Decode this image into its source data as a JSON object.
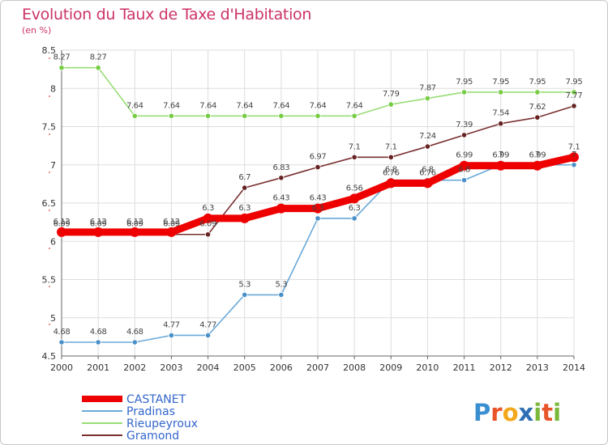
{
  "title": "Evolution du Taux de Taxe d'Habitation",
  "subtitle": "(en %)",
  "logo": {
    "letters": [
      "P",
      "r",
      "o",
      "x",
      "i",
      "t",
      "i"
    ]
  },
  "colors": {
    "title": "#cc3366",
    "legend_text": "#3366cc",
    "grid": "#dddddd",
    "axis": "#666666"
  },
  "chart_data": {
    "type": "line",
    "x": [
      2000,
      2001,
      2002,
      2003,
      2004,
      2005,
      2006,
      2007,
      2008,
      2009,
      2010,
      2011,
      2012,
      2013,
      2014
    ],
    "ylim": [
      4.5,
      8.5
    ],
    "yticks": [
      4.5,
      5,
      5.5,
      6,
      6.5,
      7,
      7.5,
      8,
      8.5
    ],
    "ytick_labels": [
      "4.5",
      "5",
      "5.5",
      "6",
      "6.5",
      "7",
      "7.5",
      "8",
      "8.5"
    ],
    "grid": true,
    "legend_position": "bottom-left",
    "series": [
      {
        "name": "CASTANET",
        "color": "#ee0000",
        "marker": "#ee0000",
        "values": [
          6.12,
          6.12,
          6.12,
          6.12,
          6.3,
          6.3,
          6.43,
          6.43,
          6.56,
          6.76,
          6.76,
          6.99,
          6.99,
          6.99,
          7.1
        ],
        "labels": [
          "6.12",
          "6.12",
          "6.12",
          "6.12",
          "6.3",
          "6.3",
          "6.43",
          "6.43",
          "6.56",
          "6.76",
          "6.76",
          "6.99",
          "6.99",
          "6.99",
          "7.1"
        ]
      },
      {
        "name": "Pradinas",
        "color": "#6aa9d8",
        "marker": "#4a90c8",
        "values": [
          4.68,
          4.68,
          4.68,
          4.77,
          4.77,
          5.3,
          5.3,
          6.3,
          6.3,
          6.8,
          6.8,
          6.8,
          7.0,
          7.0,
          7.0
        ],
        "labels": [
          "4.68",
          "4.68",
          "4.68",
          "4.77",
          "4.77",
          "5.3",
          "5.3",
          "6.3",
          "6.3",
          "6.8",
          "6.8",
          "6.8",
          "7",
          "7",
          "7"
        ]
      },
      {
        "name": "Rieupeyroux",
        "color": "#99dd77",
        "marker": "#77cc44",
        "values": [
          8.27,
          8.27,
          7.64,
          7.64,
          7.64,
          7.64,
          7.64,
          7.64,
          7.64,
          7.79,
          7.87,
          7.95,
          7.95,
          7.95,
          7.95
        ],
        "labels": [
          "8.27",
          "8.27",
          "7.64",
          "7.64",
          "7.64",
          "7.64",
          "7.64",
          "7.64",
          "7.64",
          "7.79",
          "7.87",
          "7.95",
          "7.95",
          "7.95",
          "7.95"
        ]
      },
      {
        "name": "Gramond",
        "color": "#7a3030",
        "marker": "#662222",
        "values": [
          6.09,
          6.09,
          6.09,
          6.09,
          6.09,
          6.7,
          6.83,
          6.97,
          7.1,
          7.1,
          7.24,
          7.39,
          7.54,
          7.62,
          7.77
        ],
        "labels": [
          "6.09",
          "6.09",
          "6.09",
          "6.09",
          "6.09",
          "6.7",
          "6.83",
          "6.97",
          "7.1",
          "7.1",
          "7.24",
          "7.39",
          "7.54",
          "7.62",
          "7.77"
        ]
      }
    ]
  }
}
